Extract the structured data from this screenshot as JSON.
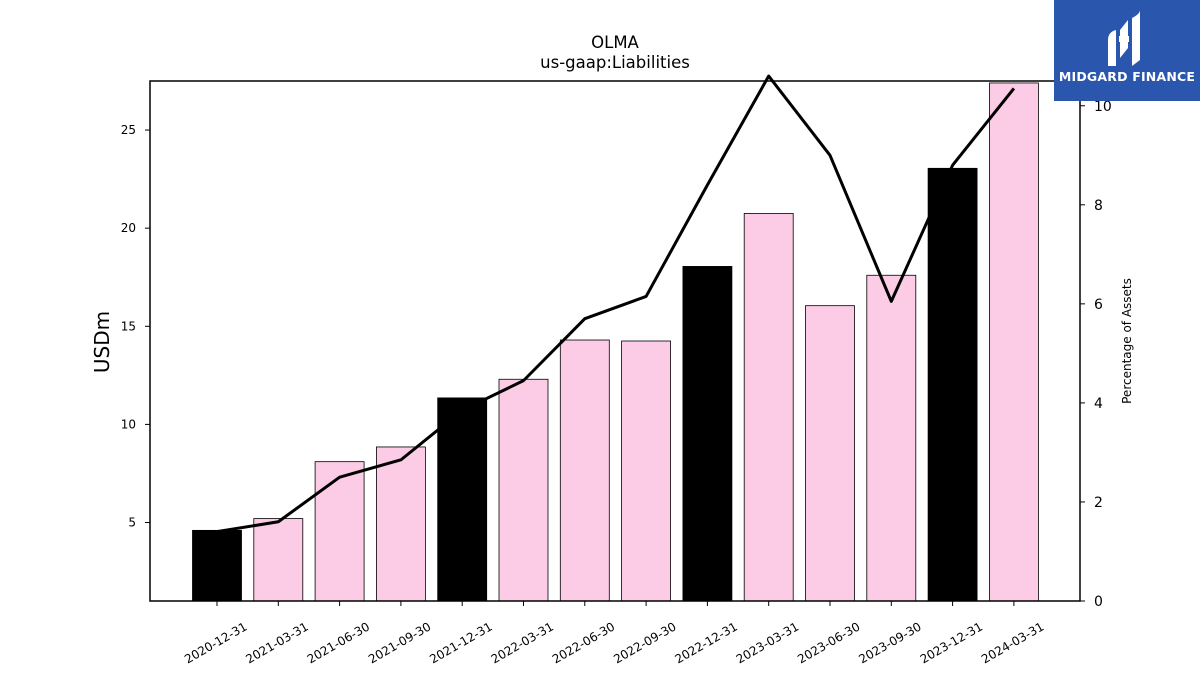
{
  "chart_data": {
    "type": "bar",
    "title": "OLMA",
    "subtitle": "us-gaap:Liabilities",
    "ylabel": "USDm",
    "y2label": "Percentage of Assets",
    "categories": [
      "2020-12-31",
      "2021-03-31",
      "2021-06-30",
      "2021-09-30",
      "2021-12-31",
      "2022-03-31",
      "2022-06-30",
      "2022-09-30",
      "2022-12-31",
      "2023-03-31",
      "2023-06-30",
      "2023-09-30",
      "2023-12-31",
      "2024-03-31"
    ],
    "series": [
      {
        "values": [
          4.6,
          5.2,
          8.1,
          8.85,
          11.35,
          12.3,
          14.3,
          14.25,
          18.05,
          20.75,
          16.05,
          17.6,
          23.05,
          27.4
        ],
        "colors": [
          "#000000",
          "#fccbe5",
          "#fccbe5",
          "#fccbe5",
          "#000000",
          "#fccbe5",
          "#fccbe5",
          "#fccbe5",
          "#000000",
          "#fccbe5",
          "#fccbe5",
          "#fccbe5",
          "#000000",
          "#fccbe5"
        ],
        "axis": "left"
      },
      {
        "values": [
          1.4,
          1.6,
          2.5,
          2.85,
          3.85,
          4.45,
          5.7,
          6.15,
          8.4,
          10.6,
          9.0,
          6.05,
          8.8,
          10.35
        ],
        "color": "#000000",
        "axis": "right",
        "style": "line"
      }
    ],
    "ylim": [
      1,
      27.5
    ],
    "y2lim": [
      0,
      10.5
    ],
    "yticks": [
      5,
      10,
      15,
      20,
      25
    ],
    "y2ticks": [
      0,
      2,
      4,
      6,
      8,
      10
    ],
    "grid": false
  },
  "logo": {
    "text": "MIDGARD FINANCE"
  }
}
